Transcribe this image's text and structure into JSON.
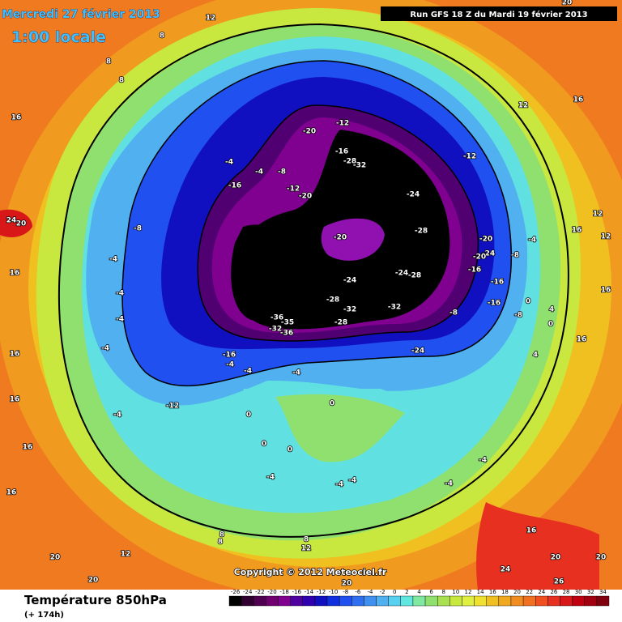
{
  "header": {
    "date": "Mercredi 27 février 2013",
    "time": "1:00 locale",
    "run": "Run GFS 18 Z du Mardi 19 février 2013"
  },
  "copyright": "Copyright © 2012 Meteociel.fr",
  "footer": {
    "title": "Température 850hPa",
    "lead": "(+ 174h)"
  },
  "legend": {
    "labels": [
      "-26",
      "-24",
      "-22",
      "-20",
      "-18",
      "-16",
      "-14",
      "-12",
      "-10",
      "-8",
      "-6",
      "-4",
      "-2",
      "0",
      "2",
      "4",
      "6",
      "8",
      "10",
      "12",
      "14",
      "16",
      "18",
      "20",
      "22",
      "24",
      "26",
      "28",
      "30",
      "32",
      "34"
    ],
    "colors": [
      "#000000",
      "#300030",
      "#500050",
      "#700070",
      "#800090",
      "#5000a0",
      "#3000b0",
      "#1010c0",
      "#1030e0",
      "#2050f0",
      "#3070f0",
      "#4090f0",
      "#50b0f0",
      "#58d0f0",
      "#60e8e0",
      "#80e8a0",
      "#90e070",
      "#a8e050",
      "#c8e840",
      "#e0f040",
      "#f0e030",
      "#f0c020",
      "#f0a820",
      "#f08c20",
      "#f07020",
      "#f05020",
      "#e83020",
      "#d81818",
      "#c00010",
      "#a00010",
      "#800010"
    ]
  },
  "map_labels": [
    "-12",
    "-20",
    "-16",
    "-28",
    "-32",
    "-24",
    "-20",
    "-28",
    "-24",
    "-24",
    "-28",
    "-28",
    "-32",
    "-32",
    "-36",
    "-35",
    "-32",
    "-36",
    "-28",
    "-24",
    "-12",
    "-12",
    "-20",
    "-16",
    "-8",
    "-4",
    "-4",
    "-8",
    "-4",
    "-4",
    "-4",
    "-4",
    "-16",
    "-4",
    "-4",
    "-4",
    "-12",
    "-4",
    "0",
    "0",
    "0",
    "0",
    "-4",
    "-4",
    "-4",
    "-4",
    "-4",
    "-20",
    "-24",
    "-20",
    "-16",
    "-16",
    "-16",
    "-8",
    "-8",
    "-4",
    "-8",
    "0",
    "0",
    "4",
    "4",
    "12",
    "8",
    "8",
    "8",
    "12",
    "16",
    "16",
    "24",
    "20",
    "16",
    "16",
    "16",
    "16",
    "16",
    "20",
    "12",
    "8",
    "8",
    "8",
    "12",
    "20",
    "20",
    "24",
    "20",
    "26",
    "20",
    "12",
    "16",
    "12",
    "16",
    "16",
    "16",
    "20"
  ]
}
